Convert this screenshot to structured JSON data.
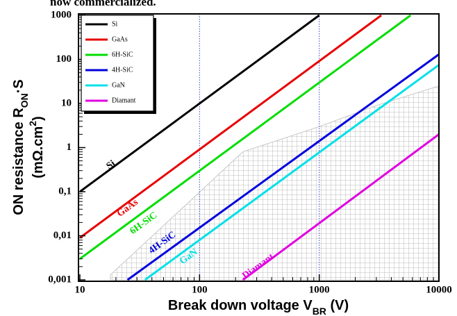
{
  "chart_data": {
    "type": "line",
    "caption_fragment": "now commercialized.",
    "xlabel": [
      "Break down voltage V",
      "BR",
      " (V)"
    ],
    "ylabel": {
      "line1": [
        "ON resistance R",
        "ON",
        "·S"
      ],
      "line2": [
        "(mΩ.cm",
        "2",
        ")"
      ]
    },
    "log_x": true,
    "log_y": true,
    "xlim": [
      10,
      10000
    ],
    "ylim": [
      0.001,
      1000
    ],
    "xticks": [
      10,
      100,
      1000,
      10000
    ],
    "yticks": [
      {
        "value": 0.001,
        "label": "0,001"
      },
      {
        "value": 0.01,
        "label": "0,01"
      },
      {
        "value": 0.1,
        "label": "0,1"
      },
      1,
      10,
      100,
      1000
    ],
    "x_grid": true,
    "grid_color": "#3344cc",
    "legend_position": "upper left",
    "series": [
      {
        "name": "Si",
        "color": "#000000",
        "x": [
          10,
          1000
        ],
        "values": [
          0.1,
          1000
        ]
      },
      {
        "name": "GaAs",
        "color": "#e80000",
        "x": [
          10,
          3300
        ],
        "values": [
          0.009,
          1000
        ]
      },
      {
        "name": "6H-SiC",
        "color": "#00dd00",
        "x": [
          10,
          5800
        ],
        "values": [
          0.003,
          1000
        ]
      },
      {
        "name": "4H-SiC",
        "color": "#0000dd",
        "x": [
          25,
          10000
        ],
        "values": [
          0.001,
          130
        ]
      },
      {
        "name": "GaN",
        "color": "#00e0e8",
        "x": [
          35,
          10000
        ],
        "values": [
          0.001,
          75
        ]
      },
      {
        "name": "Diamant",
        "color": "#e000e0",
        "x": [
          230,
          10000
        ],
        "values": [
          0.001,
          2
        ]
      }
    ],
    "shaded_region": {
      "x": [
        18,
        230,
        1000,
        3000,
        10000,
        10000,
        18
      ],
      "y": [
        0.0013,
        0.8,
        3,
        9,
        25,
        0.001,
        0.001
      ]
    }
  }
}
